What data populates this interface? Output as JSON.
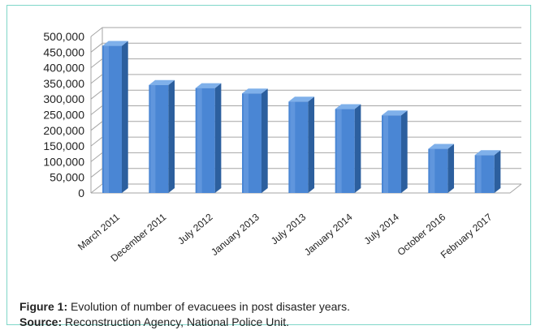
{
  "chart_data": {
    "type": "bar",
    "style": "3d",
    "categories": [
      "March 2011",
      "December 2011",
      "July 2012",
      "January 2013",
      "July 2013",
      "January 2014",
      "July 2014",
      "October 2016",
      "February 2017"
    ],
    "values": [
      470000,
      345000,
      335000,
      318000,
      292000,
      268000,
      248000,
      141000,
      121000
    ],
    "ylim": [
      0,
      500000
    ],
    "yticks": [
      "0",
      "50,000",
      "100,000",
      "150,000",
      "200,000",
      "250,000",
      "300,000",
      "350,000",
      "400,000",
      "450,000",
      "500,000"
    ],
    "grid": true,
    "legend": "none",
    "colors": {
      "bar_front": "#4a86d4",
      "bar_side": "#2c5f9e",
      "bar_top": "#7fb0ea",
      "grid": "#a6a6a6"
    }
  },
  "caption": {
    "figure_label": "Figure 1:",
    "figure_text": " Evolution of number of evacuees in post disaster years.",
    "source_label": "Source:",
    "source_text": " Reconstruction Agency, National Police Unit."
  }
}
